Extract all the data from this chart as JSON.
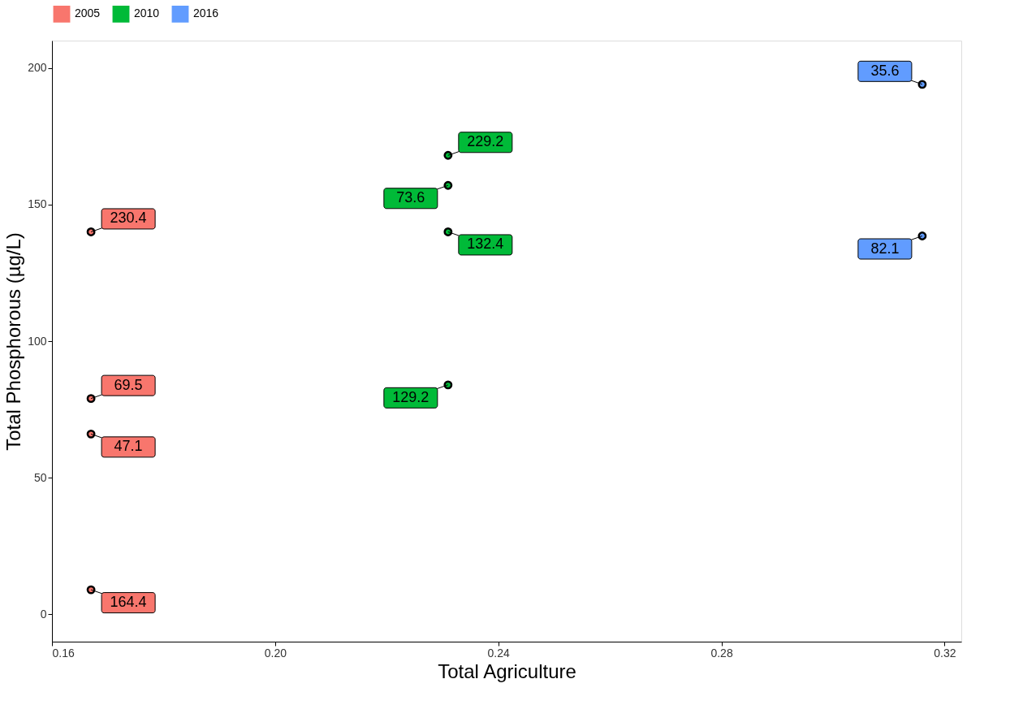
{
  "chart_data": {
    "type": "scatter",
    "xlabel": "Total Agriculture",
    "ylabel": "Total Phosphorous (µg/L)",
    "series": [
      {
        "name": "2005",
        "color": "#f8766d",
        "x": [
          0.167,
          0.167,
          0.167,
          0.167
        ],
        "values": [
          140,
          79,
          66,
          9
        ]
      },
      {
        "name": "2010",
        "color": "#00ba38",
        "x": [
          0.231,
          0.231,
          0.231,
          0.231
        ],
        "values": [
          168,
          157,
          140,
          84
        ]
      },
      {
        "name": "2016",
        "color": "#619cff",
        "x": [
          0.316,
          0.316
        ],
        "values": [
          194,
          138.5
        ]
      }
    ],
    "annotations": [
      {
        "text": "230.4",
        "x": 0.167,
        "y": 140
      },
      {
        "text": "69.5",
        "x": 0.167,
        "y": 79
      },
      {
        "text": "47.1",
        "x": 0.167,
        "y": 66
      },
      {
        "text": "164.4",
        "x": 0.167,
        "y": 9
      },
      {
        "text": "229.2",
        "x": 0.231,
        "y": 168
      },
      {
        "text": "73.6",
        "x": 0.231,
        "y": 157
      },
      {
        "text": "132.4",
        "x": 0.231,
        "y": 140
      },
      {
        "text": "129.2",
        "x": 0.231,
        "y": 84
      },
      {
        "text": "35.6",
        "x": 0.316,
        "y": 194
      },
      {
        "text": "82.1",
        "x": 0.316,
        "y": 138.5
      }
    ],
    "xlim": [
      0.16,
      0.323
    ],
    "xticks": [
      0.16,
      {
        "value": 0.2,
        "label": "0.20"
      },
      0.24,
      0.28,
      0.32
    ],
    "ylim": [
      -10,
      210
    ],
    "yticks": [
      0,
      50,
      100,
      150,
      200
    ],
    "grid": false,
    "legend": "top",
    "marker": "circle"
  }
}
